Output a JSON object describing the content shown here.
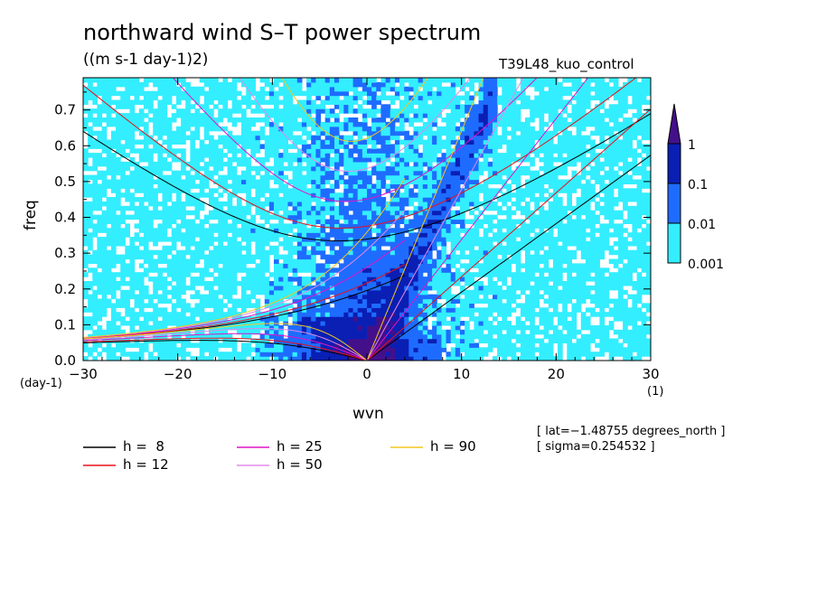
{
  "chart_data": {
    "type": "heatmap",
    "title": "northward wind S–T power spectrum",
    "units": "((m s-1 day-1)2)",
    "case_label": "T39L48_kuo_control",
    "xlabel": "wvn",
    "ylabel": "freq",
    "x_unit": "(1)",
    "y_unit": "(day-1)",
    "xlim": [
      -30,
      30
    ],
    "ylim": [
      0,
      0.79
    ],
    "x_ticks": [
      -30,
      -20,
      -10,
      0,
      10,
      20,
      30
    ],
    "x_tick_labels": [
      "−30",
      "−20",
      "−10",
      "0",
      "10",
      "20",
      "30"
    ],
    "y_ticks": [
      0,
      0.1,
      0.2,
      0.3,
      0.4,
      0.5,
      0.6,
      0.7
    ],
    "y_tick_labels": [
      "0.0",
      "0.1",
      "0.2",
      "0.3",
      "0.4",
      "0.5",
      "0.6",
      "0.7"
    ],
    "colorbar": {
      "levels": [
        0.001,
        0.01,
        0.1,
        1
      ],
      "labels": [
        "0.001",
        "0.01",
        "0.1",
        "1"
      ],
      "colors": [
        "#33eeff",
        "#1e6cff",
        "#0a1fb4",
        "#44108a"
      ]
    },
    "dispersion_curves": [
      {
        "label": "h =  8",
        "h": 8,
        "color": "#000000"
      },
      {
        "label": "h = 12",
        "h": 12,
        "color": "#e8101a"
      },
      {
        "label": "h = 25",
        "h": 25,
        "color": "#e014c8"
      },
      {
        "label": "h = 50",
        "h": 50,
        "color": "#e08ae8"
      },
      {
        "label": "h = 90",
        "h": 90,
        "color": "#f0c820"
      }
    ],
    "kelvin_line_color": "#e8f050",
    "annotations": [
      "[ lat=−1.48755 degrees_north ]",
      "[ sigma=0.254532 ]"
    ]
  }
}
